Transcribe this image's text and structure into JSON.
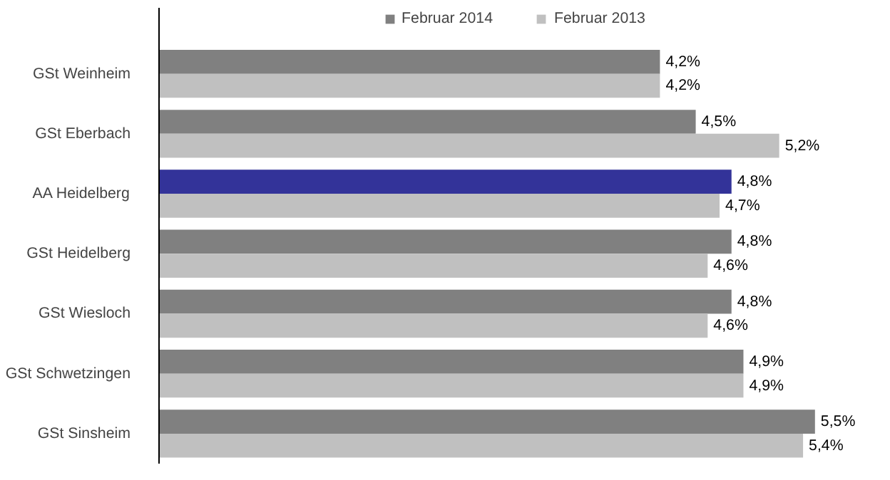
{
  "chart_data": {
    "type": "bar",
    "orientation": "horizontal",
    "categories": [
      "GSt Weinheim",
      "GSt Eberbach",
      "AA Heidelberg",
      "GSt Heidelberg",
      "GSt Wiesloch",
      "GSt Schwetzingen",
      "GSt Sinsheim"
    ],
    "series": [
      {
        "name": "Februar 2014",
        "color": "#808080",
        "colors": [
          "#808080",
          "#808080",
          "#333399",
          "#808080",
          "#808080",
          "#808080",
          "#808080"
        ],
        "values": [
          4.2,
          4.5,
          4.8,
          4.8,
          4.8,
          4.9,
          5.5
        ],
        "value_labels": [
          "4,2%",
          "4,5%",
          "4,8%",
          "4,8%",
          "4,8%",
          "4,9%",
          "5,5%"
        ]
      },
      {
        "name": "Februar 2013",
        "color": "#c0c0c0",
        "values": [
          4.2,
          5.2,
          4.7,
          4.6,
          4.6,
          4.9,
          5.4
        ],
        "value_labels": [
          "4,2%",
          "5,2%",
          "4,7%",
          "4,6%",
          "4,6%",
          "4,9%",
          "5,4%"
        ]
      }
    ],
    "legend": "top",
    "grid": false
  }
}
